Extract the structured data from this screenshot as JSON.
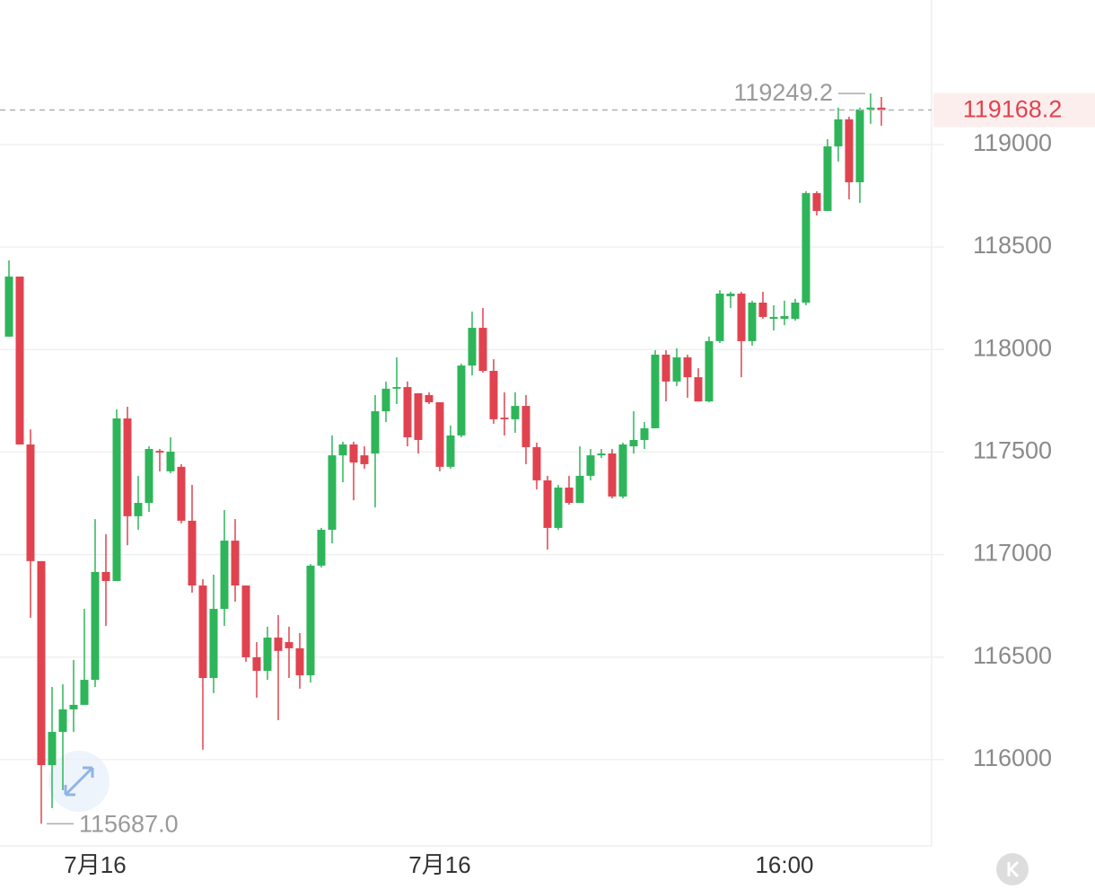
{
  "chart_data": {
    "type": "candlestick",
    "categories": [
      null,
      null,
      null,
      null,
      null,
      null,
      null,
      null,
      "7月16",
      null,
      null,
      null,
      null,
      null,
      null,
      null,
      null,
      null,
      null,
      null,
      null,
      null,
      null,
      null,
      null,
      null,
      null,
      null,
      null,
      null,
      null,
      null,
      null,
      null,
      null,
      null,
      null,
      null,
      null,
      null,
      "7月16",
      null,
      null,
      null,
      null,
      null,
      null,
      null,
      null,
      null,
      null,
      null,
      null,
      null,
      null,
      null,
      null,
      null,
      null,
      null,
      null,
      null,
      null,
      null,
      null,
      null,
      null,
      null,
      null,
      null,
      null,
      null,
      "16:00",
      null,
      null,
      null,
      null,
      null,
      null,
      null,
      null,
      null
    ],
    "open": [
      118063,
      118356,
      117537,
      116968,
      115973,
      116135,
      116245,
      116267,
      116389,
      116915,
      116871,
      117664,
      117187,
      117252,
      117506,
      117406,
      117428,
      117165,
      116849,
      116398,
      116735,
      117068,
      116849,
      116499,
      116433,
      116595,
      116573,
      116543,
      116411,
      116946,
      117121,
      117484,
      117537,
      117484,
      117493,
      117699,
      117809,
      117817,
      117787,
      117778,
      117743,
      117428,
      117581,
      117922,
      118106,
      117896,
      117668,
      117660,
      117725,
      117524,
      117362,
      117130,
      117327,
      117252,
      117384,
      117484,
      117493,
      117283,
      117528,
      117559,
      117616,
      117975,
      117844,
      117962,
      117865,
      117747,
      118041,
      118260,
      118273,
      118041,
      118229,
      118150,
      118150,
      118150,
      118229,
      118763,
      118676,
      118991,
      119123,
      118816,
      119171,
      119180
    ],
    "high": [
      118435,
      118356,
      117611,
      116968,
      116354,
      116367,
      116486,
      116735,
      117173,
      117099,
      117708,
      117721,
      117384,
      117528,
      117515,
      117572,
      117441,
      117340,
      116880,
      116902,
      117217,
      117173,
      116849,
      116573,
      116648,
      116705,
      116648,
      116617,
      116954,
      117130,
      117581,
      117550,
      117550,
      117528,
      117778,
      117844,
      117962,
      117844,
      117787,
      117791,
      117743,
      117629,
      117931,
      118185,
      118203,
      117953,
      117791,
      117791,
      117778,
      117546,
      117384,
      117340,
      117384,
      117528,
      117515,
      117515,
      117515,
      117546,
      117699,
      117646,
      117997,
      117997,
      118006,
      117975,
      117909,
      118063,
      118290,
      118282,
      118282,
      118238,
      118282,
      118216,
      118238,
      118247,
      118772,
      118772,
      119026,
      119180,
      119136,
      119180,
      119249.2,
      119232
    ],
    "low": [
      118063,
      117537,
      116692,
      115687,
      115763,
      115851,
      116135,
      116267,
      116354,
      116652,
      116871,
      117046,
      117121,
      117208,
      117406,
      117397,
      117152,
      116814,
      116048,
      116324,
      116652,
      116770,
      116477,
      116302,
      116389,
      116192,
      116398,
      116346,
      116376,
      116937,
      117055,
      117353,
      117265,
      117419,
      117230,
      117646,
      117734,
      117528,
      117493,
      117734,
      117406,
      117419,
      117572,
      117874,
      117887,
      117638,
      117581,
      117594,
      117441,
      117318,
      117024,
      117121,
      117243,
      117252,
      117362,
      117471,
      117274,
      117274,
      117493,
      117515,
      117616,
      117747,
      117822,
      117765,
      117747,
      117743,
      118032,
      118203,
      117865,
      118019,
      118150,
      118093,
      118119,
      118141,
      118216,
      118654,
      118676,
      118917,
      118733,
      118715,
      119101,
      119092
    ],
    "close": [
      118356,
      117537,
      116968,
      115973,
      116135,
      116245,
      116267,
      116389,
      116915,
      116871,
      117664,
      117187,
      117252,
      117515,
      117498,
      117502,
      117165,
      116849,
      116398,
      116735,
      117068,
      116849,
      116499,
      116433,
      116595,
      116530,
      116543,
      116411,
      116946,
      117121,
      117484,
      117537,
      117449,
      117441,
      117699,
      117809,
      117817,
      117572,
      117559,
      117743,
      117428,
      117581,
      117922,
      118106,
      117896,
      117660,
      117660,
      117725,
      117524,
      117362,
      117130,
      117327,
      117252,
      117384,
      117484,
      117493,
      117283,
      117537,
      117559,
      117616,
      117975,
      117844,
      117962,
      117865,
      117747,
      118041,
      118273,
      118273,
      118041,
      118229,
      118159,
      118159,
      118163,
      118229,
      118763,
      118676,
      118991,
      119123,
      118816,
      119171,
      119180,
      119168.2
    ],
    "up_color": "#2eb55a",
    "down_color": "#e0434f",
    "ylim": [
      115579,
      119705
    ],
    "yticks": [
      116000,
      116500,
      117000,
      117500,
      118000,
      118500,
      119000
    ],
    "grid": true,
    "last_price": {
      "value": 119168.2,
      "label": "119168.2"
    },
    "high_marker": {
      "value": 119249.2,
      "label": "119249.2"
    },
    "low_marker": {
      "value": 115687.0,
      "label": "115687.0"
    }
  }
}
